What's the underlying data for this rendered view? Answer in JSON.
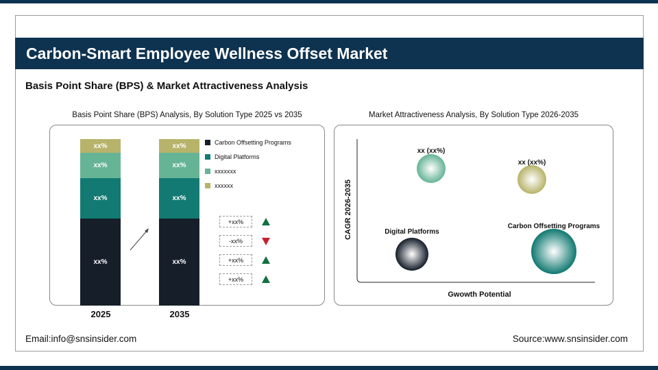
{
  "header": {
    "title": "Carbon-Smart Employee Wellness Offset Market"
  },
  "subtitle": "Basis Point Share (BPS) & Market Attractiveness Analysis",
  "colors": {
    "navy": "#0e3350",
    "carbon": "#161e2a",
    "digital": "#127a72",
    "seg3": "#66b496",
    "seg4": "#b7b36a",
    "up": "#137040",
    "down": "#c2212f"
  },
  "chart_data": [
    {
      "type": "bar",
      "stacked": true,
      "title": "Basis Point Share (BPS) Analysis, By Solution Type 2025 vs 2035",
      "categories": [
        "2025",
        "2035"
      ],
      "series": [
        {
          "name": "Carbon Offsetting Programs",
          "labels": [
            "xx%",
            "xx%"
          ],
          "color": "#161e2a"
        },
        {
          "name": "Digital Platforms",
          "labels": [
            "xx%",
            "xx%"
          ],
          "color": "#127a72"
        },
        {
          "name": "xxxxxxx",
          "labels": [
            "xx%",
            "xx%"
          ],
          "color": "#66b496"
        },
        {
          "name": "xxxxxx",
          "labels": [
            "xx%",
            "xx%"
          ],
          "color": "#b7b36a"
        }
      ],
      "legend": "right",
      "changes": [
        {
          "label": "+xx%",
          "dir": "up"
        },
        {
          "label": "-xx%",
          "dir": "down"
        },
        {
          "label": "+xx%",
          "dir": "up"
        },
        {
          "label": "+xx%",
          "dir": "up"
        }
      ]
    },
    {
      "type": "scatter",
      "title": "Market Attractiveness Analysis, By Solution Type 2026-2035",
      "xlabel": "Gwowth Potential",
      "ylabel": "CAGR 2026-2035",
      "bubbles": [
        {
          "label": "xx (xx%)",
          "color": "#66b496"
        },
        {
          "label": "xx (xx%)",
          "color": "#b7b36a"
        },
        {
          "label": "Digital Platforms",
          "color": "#161e2a"
        },
        {
          "label": "Carbon Offsetting Programs",
          "color": "#127a72"
        }
      ]
    }
  ],
  "footer": {
    "email": "Email:info@snsinsider.com",
    "source": "Source:www.snsinsider.com"
  }
}
